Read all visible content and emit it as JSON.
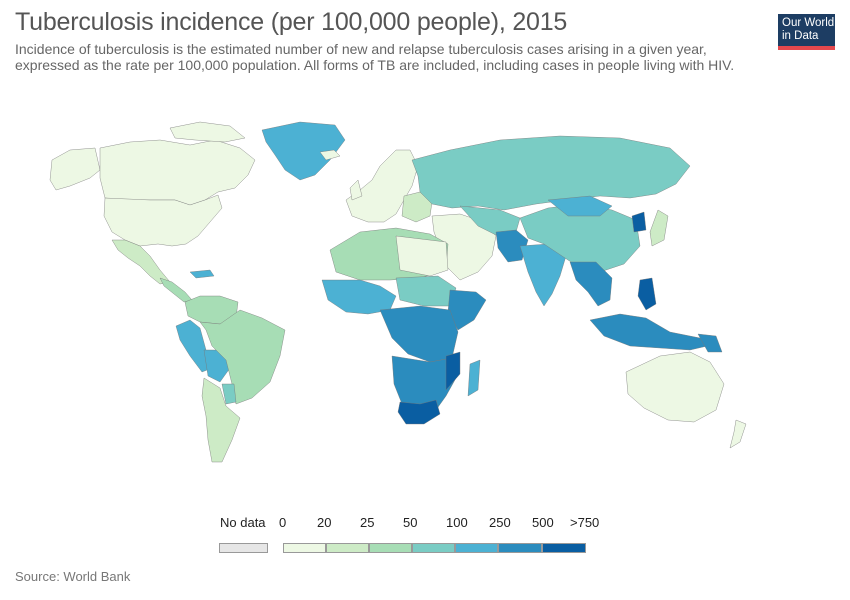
{
  "header": {
    "title": "Tuberculosis incidence (per 100,000 people), 2015",
    "subtitle": "Incidence of tuberculosis is the estimated number of new and relapse tuberculosis cases arising in a given year, expressed as the rate per 100,000 population. All forms of TB are included, including cases in people living with HIV."
  },
  "logo": {
    "line1": "Our World",
    "line2": "in Data"
  },
  "legend": {
    "no_data": {
      "label": "No data",
      "color": "#e6e6e6"
    },
    "breaks": [
      "0",
      "20",
      "25",
      "50",
      "100",
      "250",
      "500",
      ">750"
    ],
    "colors": [
      "#edf8e4",
      "#cdebc6",
      "#a7ddb5",
      "#7accc4",
      "#4cb1d3",
      "#2b8cbe",
      "#0a5ea2"
    ]
  },
  "colors": {
    "ocean": "#ffffff",
    "border": "#777777"
  },
  "footer": {
    "source": "Source: World Bank"
  }
}
